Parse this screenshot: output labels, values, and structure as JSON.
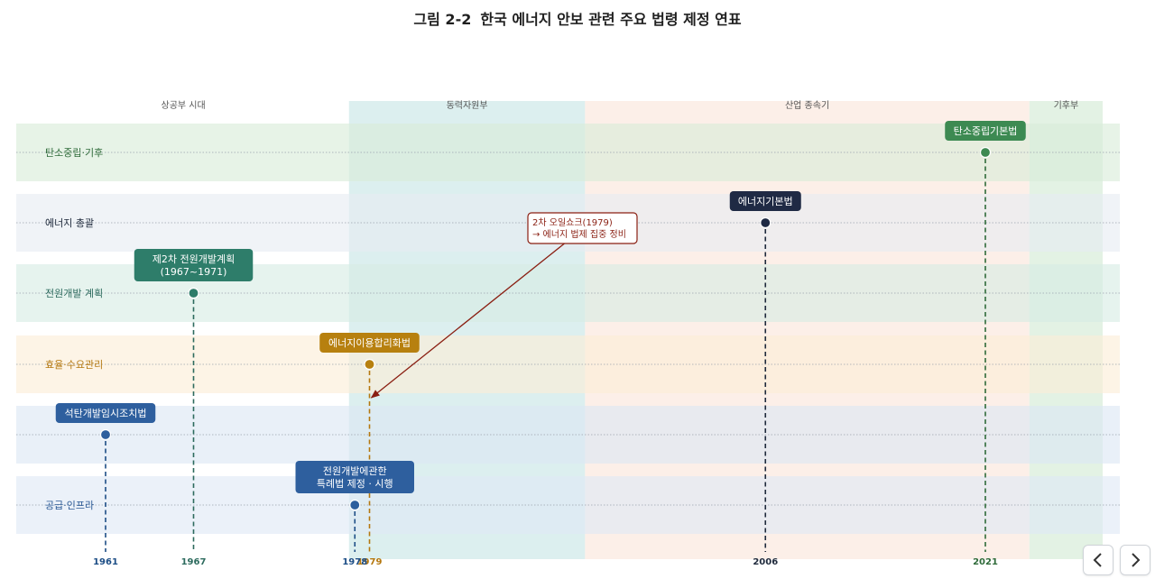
{
  "title": {
    "number": "그림 2-2",
    "text": "한국 에너지 안보 관련 주요 법령 제정 연표"
  },
  "eras": [
    {
      "label": "상공부 시대",
      "from": 1955,
      "to": 1977.6,
      "color": "#ffffff"
    },
    {
      "label": "동력자원부",
      "from": 1977.6,
      "to": 1993.7,
      "color": "#dcefef"
    },
    {
      "label": "산업 종속기",
      "from": 1993.7,
      "to": 2024,
      "color": "#fcefe8"
    },
    {
      "label": "기후부",
      "from": 2024,
      "to": 2029,
      "color": "#e3f2e4"
    }
  ],
  "lanes": [
    {
      "label": "탄소중립·기후",
      "color": "#2f6b3a",
      "band": "#d9ecd9"
    },
    {
      "label": "에너지 총괄",
      "color": "#1f2a3c",
      "band": "#e6ebf2"
    },
    {
      "label": "전원개발 계획",
      "color": "#2d6b5e",
      "band": "#d6ece4"
    },
    {
      "label": "효율·수요관리",
      "color": "#b5780f",
      "band": "#fbeed6"
    },
    {
      "label": "",
      "color": "#2b5a96",
      "band": "#dce6f4"
    },
    {
      "label": "공급·인프라",
      "color": "#2b5a96",
      "band": "#dfe9f5"
    }
  ],
  "events": [
    {
      "label": [
        "탄소중립기본법"
      ],
      "year": 2021,
      "lane": 0,
      "color": "#3d8a52",
      "year_color": "#2f6b3a"
    },
    {
      "label": [
        "에너지기본법"
      ],
      "year": 2006,
      "lane": 1,
      "color": "#1f2a44",
      "year_color": "#1f2a3c"
    },
    {
      "label": [
        "제2차 전원개발계획",
        "(1967~1971)"
      ],
      "year": 1967,
      "lane": 2,
      "color": "#2e7d6a",
      "year_color": "#2d6b5e"
    },
    {
      "label": [
        "에너지이용합리화법"
      ],
      "year": 1979,
      "lane": 3,
      "color": "#b7800f",
      "year_color": "#b5780f"
    },
    {
      "label": [
        "석탄개발임시조치법"
      ],
      "year": 1961,
      "lane": 4,
      "color": "#2e5f9e",
      "year_color": "#1d4e86"
    },
    {
      "label": [
        "전원개발에관한",
        "특례법 제정 · 시행"
      ],
      "year": 1978,
      "lane": 5,
      "color": "#2e5f9e",
      "year_color": "#1d4e86"
    }
  ],
  "annotation": {
    "lines": [
      "2차 오일쇼크(1979)",
      "→ 에너지 법제 집중 정비"
    ],
    "color": "#8a1f12"
  },
  "nav": {
    "prev": "chevron-left-icon",
    "next": "chevron-right-icon"
  }
}
